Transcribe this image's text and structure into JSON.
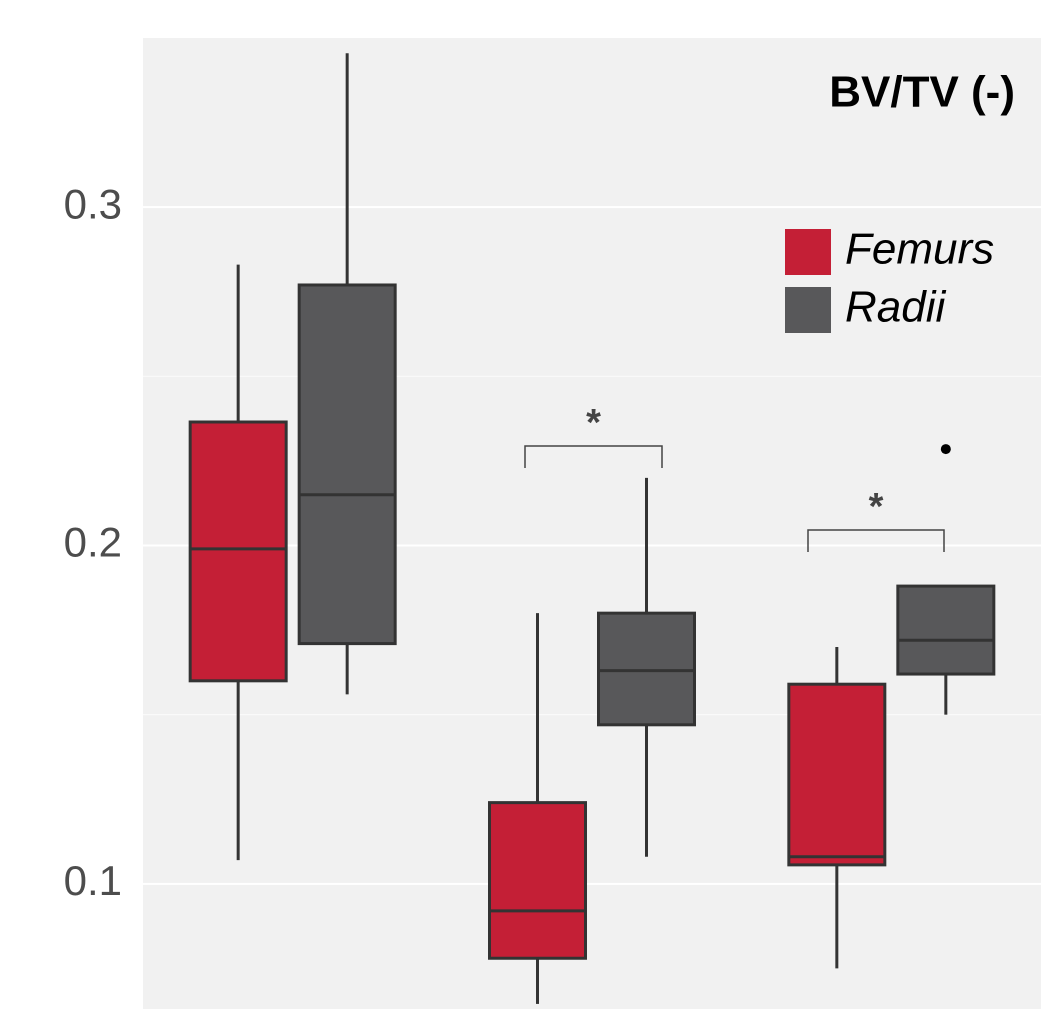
{
  "chart_data": {
    "type": "box",
    "title": "BV/TV (-)",
    "categories": [
      null,
      null,
      null
    ],
    "ylim": [
      0.063,
      0.35
    ],
    "yticks": [
      0.1,
      0.2,
      0.3
    ],
    "minor_yticks": [
      0.15,
      0.25
    ],
    "grid": true,
    "legend_position": "top-right",
    "annotations": [
      "*",
      "*"
    ],
    "series": [
      {
        "name": "Femurs",
        "color": "#c41f36",
        "values": [
          {
            "min": 0.107,
            "q1": 0.16,
            "median": 0.199,
            "q3": 0.2365,
            "max": 0.283
          },
          {
            "min": 0.0645,
            "q1": 0.078,
            "median": 0.092,
            "q3": 0.124,
            "max": 0.18
          },
          {
            "min": 0.075,
            "q1": 0.1056,
            "median": 0.108,
            "q3": 0.159,
            "max": 0.17
          }
        ],
        "outliers": [
          [],
          [],
          []
        ]
      },
      {
        "name": "Radii",
        "color": "#58585a",
        "values": [
          {
            "min": 0.156,
            "q1": 0.171,
            "median": 0.215,
            "q3": 0.277,
            "max": 0.3455
          },
          {
            "min": 0.108,
            "q1": 0.147,
            "median": 0.163,
            "q3": 0.18,
            "max": 0.22
          },
          {
            "min": 0.15,
            "q1": 0.162,
            "median": 0.172,
            "q3": 0.188,
            "max": 0.188
          }
        ],
        "outliers": [
          [],
          [],
          [
            0.2285
          ]
        ]
      }
    ]
  }
}
